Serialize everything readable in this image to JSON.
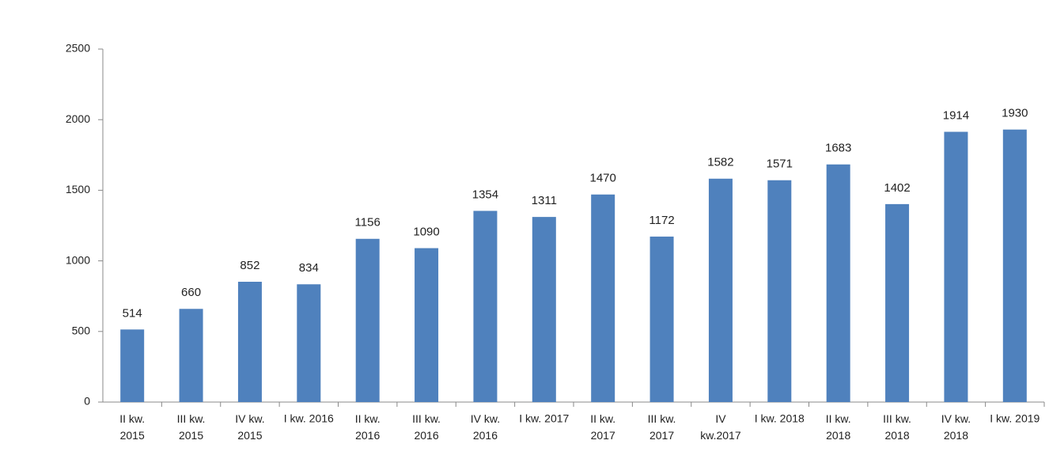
{
  "chart_data": {
    "type": "bar",
    "categories": [
      "II kw.\n2015",
      "III kw.\n2015",
      "IV kw.\n2015",
      "I kw. 2016",
      "II kw.\n2016",
      "III kw.\n2016",
      "IV kw.\n2016",
      "I kw. 2017",
      "II kw.\n2017",
      "III kw.\n2017",
      "IV\nkw.2017",
      "I kw. 2018",
      "II kw.\n2018",
      "III kw.\n2018",
      "IV kw.\n2018",
      "I kw. 2019"
    ],
    "values": [
      514,
      660,
      852,
      834,
      1156,
      1090,
      1354,
      1311,
      1470,
      1172,
      1582,
      1571,
      1683,
      1402,
      1914,
      1930
    ],
    "color": "#4f81bd",
    "ylim": [
      0,
      2500
    ],
    "yticks": [
      0,
      500,
      1000,
      1500,
      2000,
      2500
    ],
    "grid": false
  }
}
